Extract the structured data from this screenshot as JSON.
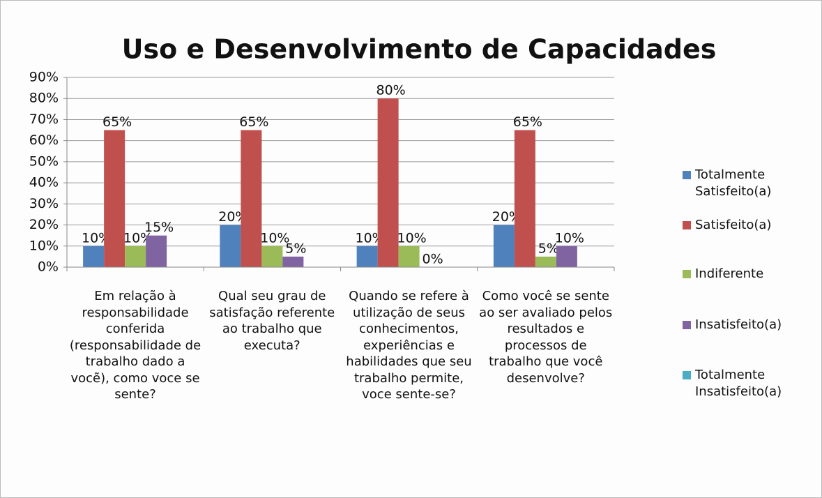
{
  "chart_data": {
    "type": "bar",
    "title": "Uso e Desenvolvimento de Capacidades",
    "categories": [
      "Em relação à responsabilidade conferida (responsabilidade de trabalho dado a vocẽ), como voce se sente?",
      "Qual seu grau de satisfação referente ao trabalho que executa?",
      "Quando se refere à utilização de seus conhecimentos, experiências e habilidades que seu trabalho permite, voce sente-se?",
      "Como você se sente ao ser avaliado pelos resultados e processos de trabalho que você desenvolve?"
    ],
    "series": [
      {
        "name": "Totalmente Satisfeito(a)",
        "color": "#4f81bd",
        "values": [
          10,
          20,
          10,
          20
        ],
        "value_labels": [
          "10%",
          "20%",
          "10%",
          "20%"
        ]
      },
      {
        "name": "Satisfeito(a)",
        "color": "#c0504d",
        "values": [
          65,
          65,
          80,
          65
        ],
        "value_labels": [
          "65%",
          "65%",
          "80%",
          "65%"
        ]
      },
      {
        "name": "Indiferente",
        "color": "#9bbb59",
        "values": [
          10,
          10,
          10,
          5
        ],
        "value_labels": [
          "10%",
          "10%",
          "10%",
          "5%"
        ]
      },
      {
        "name": "Insatisfeito(a)",
        "color": "#8064a2",
        "values": [
          15,
          5,
          0,
          10
        ],
        "value_labels": [
          "15%",
          "5%",
          "0%",
          "10%"
        ]
      },
      {
        "name": "Totalmente Insatisfeito(a)",
        "color": "#4bacc6",
        "values": [
          0,
          0,
          0,
          0
        ]
      }
    ],
    "ylim": [
      0,
      90
    ],
    "yticks": [
      {
        "value": 0,
        "label": "0%"
      },
      {
        "value": 10,
        "label": "10%"
      },
      {
        "value": 20,
        "label": "20%"
      },
      {
        "value": 30,
        "label": "30%"
      },
      {
        "value": 40,
        "label": "40%"
      },
      {
        "value": 50,
        "label": "50%"
      },
      {
        "value": 60,
        "label": "60%"
      },
      {
        "value": 70,
        "label": "70%"
      },
      {
        "value": 80,
        "label": "80%"
      },
      {
        "value": 90,
        "label": "90%"
      }
    ],
    "grid": true,
    "legend": "right"
  }
}
